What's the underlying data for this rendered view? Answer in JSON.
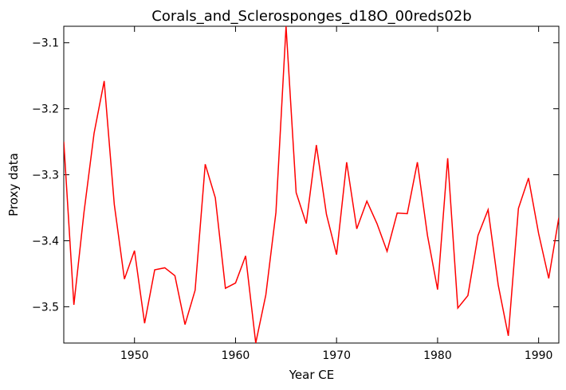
{
  "chart_data": {
    "type": "line",
    "title": "Corals_and_Sclerosponges_d18O_00reds02b",
    "xlabel": "Year CE",
    "ylabel": "Proxy data",
    "xlim": [
      1943,
      1992
    ],
    "ylim": [
      -3.555,
      -3.075
    ],
    "x_ticks": [
      1950,
      1960,
      1970,
      1980,
      1990
    ],
    "y_ticks": [
      -3.1,
      -3.2,
      -3.3,
      -3.4,
      -3.5
    ],
    "x_tick_labels": [
      "1950",
      "1960",
      "1970",
      "1980",
      "1990"
    ],
    "y_tick_labels": [
      "−3.1",
      "−3.2",
      "−3.3",
      "−3.4",
      "−3.5"
    ],
    "grid": false,
    "series": [
      {
        "color": "#ff0000",
        "x": [
          1943,
          1944,
          1945,
          1946,
          1947,
          1948,
          1949,
          1950,
          1951,
          1952,
          1953,
          1954,
          1955,
          1956,
          1957,
          1958,
          1959,
          1960,
          1961,
          1962,
          1963,
          1964,
          1965,
          1966,
          1967,
          1968,
          1969,
          1970,
          1971,
          1972,
          1973,
          1974,
          1975,
          1976,
          1977,
          1978,
          1979,
          1980,
          1981,
          1982,
          1983,
          1984,
          1985,
          1986,
          1987,
          1988,
          1989,
          1990,
          1991,
          1992
        ],
        "y": [
          -3.25,
          -3.497,
          -3.357,
          -3.237,
          -3.158,
          -3.345,
          -3.458,
          -3.415,
          -3.525,
          -3.444,
          -3.441,
          -3.453,
          -3.527,
          -3.475,
          -3.284,
          -3.335,
          -3.472,
          -3.464,
          -3.423,
          -3.555,
          -3.482,
          -3.357,
          -3.075,
          -3.327,
          -3.374,
          -3.255,
          -3.36,
          -3.421,
          -3.281,
          -3.382,
          -3.34,
          -3.374,
          -3.416,
          -3.358,
          -3.359,
          -3.281,
          -3.392,
          -3.474,
          -3.275,
          -3.502,
          -3.483,
          -3.392,
          -3.353,
          -3.467,
          -3.544,
          -3.351,
          -3.305,
          -3.389,
          -3.457,
          -3.365
        ]
      }
    ]
  }
}
